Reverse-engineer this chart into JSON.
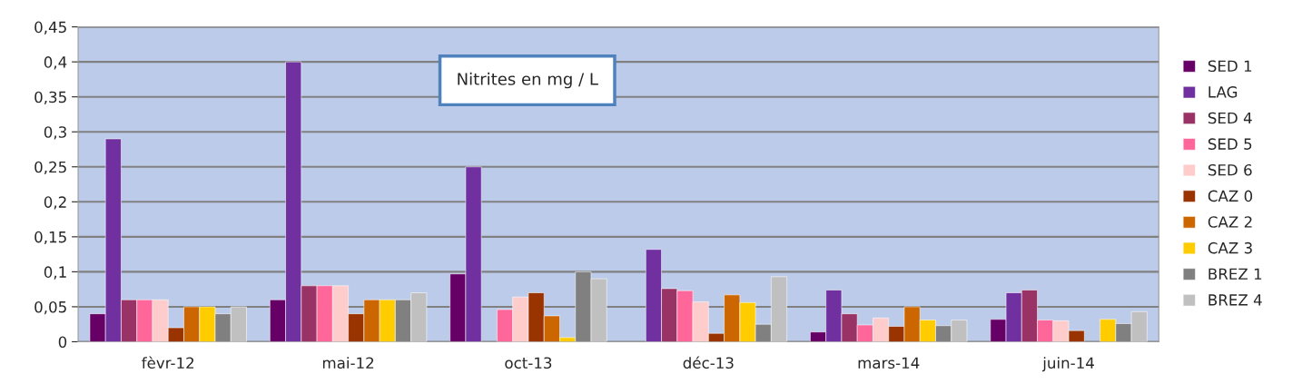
{
  "chart_data": {
    "type": "bar",
    "title": "Nitrites en mg / L",
    "categories": [
      "fèvr-12",
      "mai-12",
      "oct-13",
      "déc-13",
      "mars-14",
      "juin-14"
    ],
    "series": [
      {
        "name": "SED 1",
        "color": "#660066",
        "values": [
          0.04,
          0.06,
          0.097,
          null,
          0.014,
          0.032
        ]
      },
      {
        "name": "LAG",
        "color": "#7030a0",
        "values": [
          0.29,
          0.4,
          0.25,
          0.132,
          0.074,
          0.07
        ]
      },
      {
        "name": "SED 4",
        "color": "#993366",
        "values": [
          0.06,
          0.08,
          null,
          0.076,
          0.04,
          0.074
        ]
      },
      {
        "name": "SED 5",
        "color": "#ff6699",
        "values": [
          0.06,
          0.08,
          0.046,
          0.073,
          0.024,
          0.031
        ]
      },
      {
        "name": "SED 6",
        "color": "#ffcccc",
        "values": [
          0.06,
          0.08,
          0.064,
          0.057,
          0.034,
          0.03
        ]
      },
      {
        "name": "CAZ 0",
        "color": "#993300",
        "values": [
          0.02,
          0.04,
          0.07,
          0.012,
          0.022,
          0.016
        ]
      },
      {
        "name": "CAZ 2",
        "color": "#cc6600",
        "values": [
          0.05,
          0.06,
          0.037,
          0.067,
          0.05,
          null
        ]
      },
      {
        "name": "CAZ 3",
        "color": "#ffcc00",
        "values": [
          0.05,
          0.06,
          0.006,
          0.056,
          0.031,
          0.032
        ]
      },
      {
        "name": "BREZ 1",
        "color": "#808080",
        "values": [
          0.04,
          0.06,
          0.1,
          0.025,
          0.023,
          0.026
        ]
      },
      {
        "name": "BREZ 4",
        "color": "#c0c0c0",
        "values": [
          0.05,
          0.07,
          0.09,
          0.093,
          0.031,
          0.043
        ]
      }
    ],
    "ylim": [
      0,
      0.45
    ],
    "yticks": [
      0,
      {
        "value": 0.05,
        "label": "0,05"
      },
      {
        "value": 0.1,
        "label": "0,1"
      },
      {
        "value": 0.15,
        "label": "0,15"
      },
      {
        "value": 0.2,
        "label": "0,2"
      },
      {
        "value": 0.25,
        "label": "0,25"
      },
      {
        "value": 0.3,
        "label": "0,3"
      },
      {
        "value": 0.35,
        "label": "0,35"
      },
      {
        "value": 0.4,
        "label": "0,4"
      },
      {
        "value": 0.45,
        "label": "0,45"
      }
    ],
    "grid": "y",
    "legend": "right"
  }
}
